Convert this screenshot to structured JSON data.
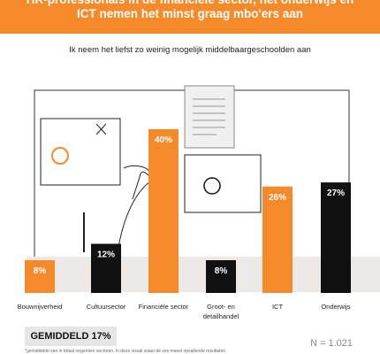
{
  "header": {
    "line1": "HR-professionals in de financiële sector, het onderwijs en",
    "line2": "ICT nemen het minst graag mbo'ers aan"
  },
  "chart_data": {
    "type": "bar",
    "title": "Ik neem het liefst zo weinig mogelijk middelbaargeschoolden aan",
    "categories": [
      "Bouwnijverheid",
      "Cultuursector",
      "Financiële sector",
      "Groot- en detailhandel",
      "ICT",
      "Onderwijs"
    ],
    "values": [
      8,
      12,
      40,
      8,
      26,
      27
    ],
    "value_labels": [
      "8%",
      "12%",
      "40%",
      "8%",
      "26%",
      "27%"
    ],
    "bar_colors": [
      "#f58a2b",
      "#111111",
      "#f58a2b",
      "#111111",
      "#f58a2b",
      "#111111"
    ],
    "ylim": [
      0,
      40
    ],
    "grid": false,
    "legend": "none"
  },
  "average_label": "GEMIDDELD 17%",
  "sample_size": "N = 1.021",
  "footnote": "*gemiddelde van in totaal negentien sectoren. In deze visual staan de zes meest opvallende resultaten."
}
